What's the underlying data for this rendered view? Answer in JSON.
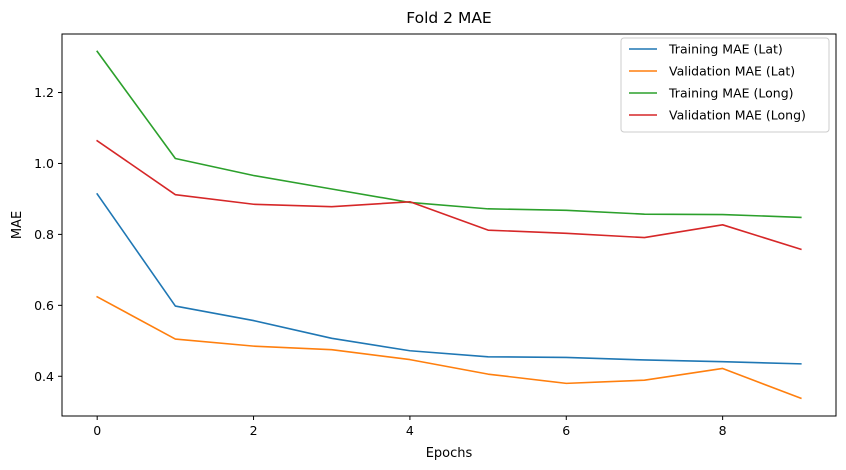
{
  "chart_data": {
    "type": "line",
    "title": "Fold 2 MAE",
    "xlabel": "Epochs",
    "ylabel": "MAE",
    "x": [
      0,
      1,
      2,
      3,
      4,
      5,
      6,
      7,
      8,
      9
    ],
    "xlim": [
      -0.45,
      9.45
    ],
    "ylim": [
      0.288,
      1.365
    ],
    "xticks": [
      0,
      2,
      4,
      6,
      8
    ],
    "yticks": [
      0.4,
      0.6,
      0.8,
      1.0,
      1.2
    ],
    "ytick_labels": [
      "0.4",
      "0.6",
      "0.8",
      "1.0",
      "1.2"
    ],
    "grid": false,
    "legend_position": "top-right",
    "series": [
      {
        "name": "Training MAE (Lat)",
        "color": "#1f77b4",
        "values": [
          0.914,
          0.598,
          0.557,
          0.507,
          0.472,
          0.455,
          0.453,
          0.446,
          0.441,
          0.435
        ]
      },
      {
        "name": "Validation MAE (Lat)",
        "color": "#ff7f0e",
        "values": [
          0.624,
          0.505,
          0.485,
          0.475,
          0.447,
          0.406,
          0.38,
          0.389,
          0.422,
          0.338
        ]
      },
      {
        "name": "Training MAE (Long)",
        "color": "#2ca02c",
        "values": [
          1.316,
          1.014,
          0.966,
          0.928,
          0.89,
          0.872,
          0.868,
          0.857,
          0.856,
          0.848
        ]
      },
      {
        "name": "Validation MAE (Long)",
        "color": "#d62728",
        "values": [
          1.064,
          0.912,
          0.885,
          0.878,
          0.892,
          0.812,
          0.803,
          0.791,
          0.827,
          0.758
        ]
      }
    ]
  }
}
